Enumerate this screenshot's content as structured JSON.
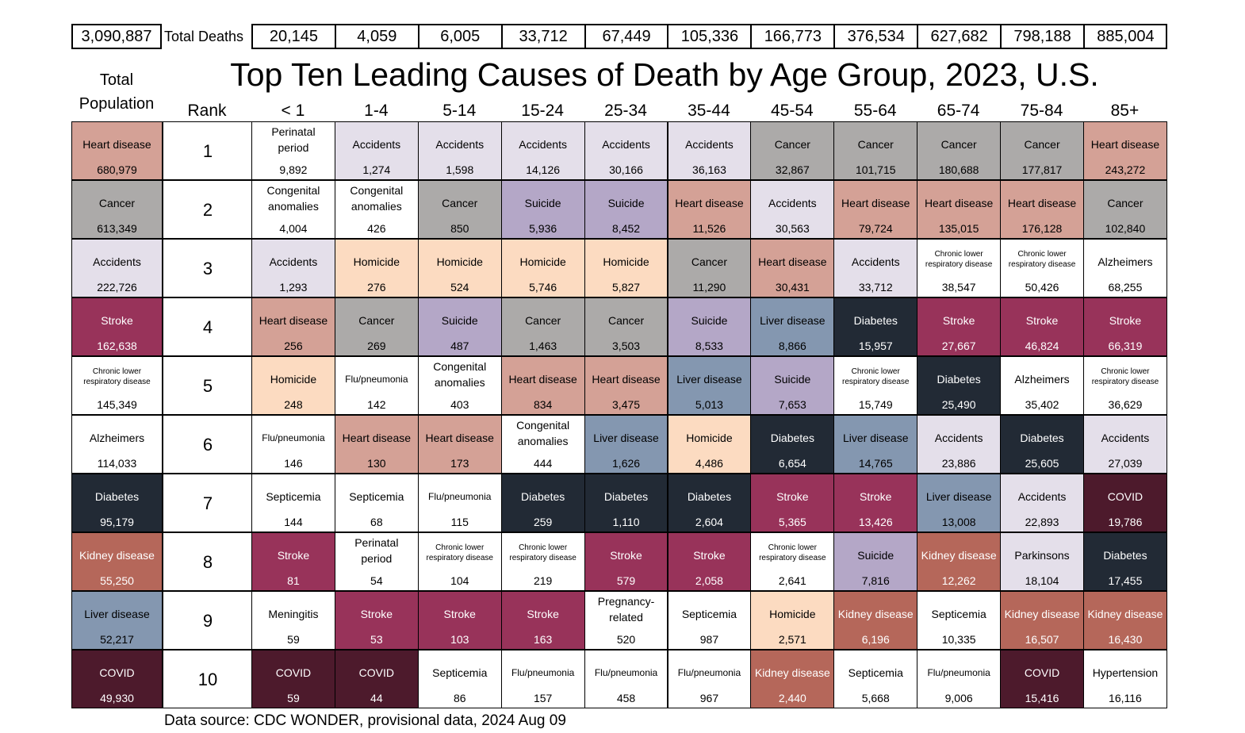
{
  "total_deaths_all": "3,090,887",
  "total_deaths_label": "Total Deaths",
  "title": "Top Ten Leading Causes of Death by Age Group, 2023, U.S.",
  "total_population_label": "Total Population",
  "rank_label": "Rank",
  "source": "Data source: CDC WONDER, provisional data, 2024 Aug 09",
  "colors": {
    "Heart disease": "#d4a196",
    "Cancer": "#acaaa9",
    "Accidents": "#e4dfea",
    "Stroke": "#98335a",
    "Chronic lower respiratory disease": "#ffffff",
    "Alzheimers": "#ffffff",
    "Diabetes": "#222a35",
    "Kidney disease": "#b5675a",
    "Liver disease": "#8497b0",
    "COVID": "#4d1a2c",
    "Perinatal period": "#ffffff",
    "Congenital anomalies": "#ffffff",
    "Homicide": "#fcdbc1",
    "Flu/pneumonia": "#ffffff",
    "Septicemia": "#ffffff",
    "Meningitis": "#ffffff",
    "Suicide": "#b4a7c7",
    "Pregnancy-related": "#ffffff",
    "Parkinsons": "#e4dfea",
    "Hypertension": "#ffffff"
  },
  "chart_data": {
    "type": "table",
    "title": "Top Ten Leading Causes of Death by Age Group, 2023, U.S.",
    "age_groups": [
      "< 1",
      "1-4",
      "5-14",
      "15-24",
      "25-34",
      "35-44",
      "45-54",
      "55-64",
      "65-74",
      "75-84",
      "85+"
    ],
    "total_deaths": [
      "20,145",
      "4,059",
      "6,005",
      "33,712",
      "67,449",
      "105,336",
      "166,773",
      "376,534",
      "627,682",
      "798,188",
      "885,004"
    ],
    "ranks": [
      "1",
      "2",
      "3",
      "4",
      "5",
      "6",
      "7",
      "8",
      "9",
      "10"
    ],
    "total_population": [
      {
        "cause": "Heart disease",
        "deaths": "680,979"
      },
      {
        "cause": "Cancer",
        "deaths": "613,349"
      },
      {
        "cause": "Accidents",
        "deaths": "222,726"
      },
      {
        "cause": "Stroke",
        "deaths": "162,638"
      },
      {
        "cause": "Chronic lower respiratory disease",
        "deaths": "145,349"
      },
      {
        "cause": "Alzheimers",
        "deaths": "114,033"
      },
      {
        "cause": "Diabetes",
        "deaths": "95,179"
      },
      {
        "cause": "Kidney disease",
        "deaths": "55,250"
      },
      {
        "cause": "Liver disease",
        "deaths": "52,217"
      },
      {
        "cause": "COVID",
        "deaths": "49,930"
      }
    ],
    "by_age": [
      [
        {
          "cause": "Perinatal period",
          "deaths": "9,892"
        },
        {
          "cause": "Congenital anomalies",
          "deaths": "4,004"
        },
        {
          "cause": "Accidents",
          "deaths": "1,293"
        },
        {
          "cause": "Heart disease",
          "deaths": "256"
        },
        {
          "cause": "Homicide",
          "deaths": "248"
        },
        {
          "cause": "Flu/pneumonia",
          "deaths": "146"
        },
        {
          "cause": "Septicemia",
          "deaths": "144"
        },
        {
          "cause": "Stroke",
          "deaths": "81"
        },
        {
          "cause": "Meningitis",
          "deaths": "59"
        },
        {
          "cause": "COVID",
          "deaths": "59"
        }
      ],
      [
        {
          "cause": "Accidents",
          "deaths": "1,274"
        },
        {
          "cause": "Congenital anomalies",
          "deaths": "426"
        },
        {
          "cause": "Homicide",
          "deaths": "276"
        },
        {
          "cause": "Cancer",
          "deaths": "269"
        },
        {
          "cause": "Flu/pneumonia",
          "deaths": "142"
        },
        {
          "cause": "Heart disease",
          "deaths": "130"
        },
        {
          "cause": "Septicemia",
          "deaths": "68"
        },
        {
          "cause": "Perinatal period",
          "deaths": "54"
        },
        {
          "cause": "Stroke",
          "deaths": "53"
        },
        {
          "cause": "COVID",
          "deaths": "44"
        }
      ],
      [
        {
          "cause": "Accidents",
          "deaths": "1,598"
        },
        {
          "cause": "Cancer",
          "deaths": "850"
        },
        {
          "cause": "Homicide",
          "deaths": "524"
        },
        {
          "cause": "Suicide",
          "deaths": "487"
        },
        {
          "cause": "Congenital anomalies",
          "deaths": "403"
        },
        {
          "cause": "Heart disease",
          "deaths": "173"
        },
        {
          "cause": "Flu/pneumonia",
          "deaths": "115"
        },
        {
          "cause": "Chronic lower respiratory disease",
          "deaths": "104"
        },
        {
          "cause": "Stroke",
          "deaths": "103"
        },
        {
          "cause": "Septicemia",
          "deaths": "86"
        }
      ],
      [
        {
          "cause": "Accidents",
          "deaths": "14,126"
        },
        {
          "cause": "Suicide",
          "deaths": "5,936"
        },
        {
          "cause": "Homicide",
          "deaths": "5,746"
        },
        {
          "cause": "Cancer",
          "deaths": "1,463"
        },
        {
          "cause": "Heart disease",
          "deaths": "834"
        },
        {
          "cause": "Congenital anomalies",
          "deaths": "444"
        },
        {
          "cause": "Diabetes",
          "deaths": "259"
        },
        {
          "cause": "Chronic lower respiratory disease",
          "deaths": "219"
        },
        {
          "cause": "Stroke",
          "deaths": "163"
        },
        {
          "cause": "Flu/pneumonia",
          "deaths": "157"
        }
      ],
      [
        {
          "cause": "Accidents",
          "deaths": "30,166"
        },
        {
          "cause": "Suicide",
          "deaths": "8,452"
        },
        {
          "cause": "Homicide",
          "deaths": "5,827"
        },
        {
          "cause": "Cancer",
          "deaths": "3,503"
        },
        {
          "cause": "Heart disease",
          "deaths": "3,475"
        },
        {
          "cause": "Liver disease",
          "deaths": "1,626"
        },
        {
          "cause": "Diabetes",
          "deaths": "1,110"
        },
        {
          "cause": "Stroke",
          "deaths": "579"
        },
        {
          "cause": "Pregnancy-related",
          "deaths": "520"
        },
        {
          "cause": "Flu/pneumonia",
          "deaths": "458"
        }
      ],
      [
        {
          "cause": "Accidents",
          "deaths": "36,163"
        },
        {
          "cause": "Heart disease",
          "deaths": "11,526"
        },
        {
          "cause": "Cancer",
          "deaths": "11,290"
        },
        {
          "cause": "Suicide",
          "deaths": "8,533"
        },
        {
          "cause": "Liver disease",
          "deaths": "5,013"
        },
        {
          "cause": "Homicide",
          "deaths": "4,486"
        },
        {
          "cause": "Diabetes",
          "deaths": "2,604"
        },
        {
          "cause": "Stroke",
          "deaths": "2,058"
        },
        {
          "cause": "Septicemia",
          "deaths": "987"
        },
        {
          "cause": "Flu/pneumonia",
          "deaths": "967"
        }
      ],
      [
        {
          "cause": "Cancer",
          "deaths": "32,867"
        },
        {
          "cause": "Accidents",
          "deaths": "30,563"
        },
        {
          "cause": "Heart disease",
          "deaths": "30,431"
        },
        {
          "cause": "Liver disease",
          "deaths": "8,866"
        },
        {
          "cause": "Suicide",
          "deaths": "7,653"
        },
        {
          "cause": "Diabetes",
          "deaths": "6,654"
        },
        {
          "cause": "Stroke",
          "deaths": "5,365"
        },
        {
          "cause": "Chronic lower respiratory disease",
          "deaths": "2,641"
        },
        {
          "cause": "Homicide",
          "deaths": "2,571"
        },
        {
          "cause": "Kidney disease",
          "deaths": "2,440"
        }
      ],
      [
        {
          "cause": "Cancer",
          "deaths": "101,715"
        },
        {
          "cause": "Heart disease",
          "deaths": "79,724"
        },
        {
          "cause": "Accidents",
          "deaths": "33,712"
        },
        {
          "cause": "Diabetes",
          "deaths": "15,957"
        },
        {
          "cause": "Chronic lower respiratory disease",
          "deaths": "15,749"
        },
        {
          "cause": "Liver disease",
          "deaths": "14,765"
        },
        {
          "cause": "Stroke",
          "deaths": "13,426"
        },
        {
          "cause": "Suicide",
          "deaths": "7,816"
        },
        {
          "cause": "Kidney disease",
          "deaths": "6,196"
        },
        {
          "cause": "Septicemia",
          "deaths": "5,668"
        }
      ],
      [
        {
          "cause": "Cancer",
          "deaths": "180,688"
        },
        {
          "cause": "Heart disease",
          "deaths": "135,015"
        },
        {
          "cause": "Chronic lower respiratory disease",
          "deaths": "38,547"
        },
        {
          "cause": "Stroke",
          "deaths": "27,667"
        },
        {
          "cause": "Diabetes",
          "deaths": "25,490"
        },
        {
          "cause": "Accidents",
          "deaths": "23,886"
        },
        {
          "cause": "Liver disease",
          "deaths": "13,008"
        },
        {
          "cause": "Kidney disease",
          "deaths": "12,262"
        },
        {
          "cause": "Septicemia",
          "deaths": "10,335"
        },
        {
          "cause": "Flu/pneumonia",
          "deaths": "9,006"
        }
      ],
      [
        {
          "cause": "Cancer",
          "deaths": "177,817"
        },
        {
          "cause": "Heart disease",
          "deaths": "176,128"
        },
        {
          "cause": "Chronic lower respiratory disease",
          "deaths": "50,426"
        },
        {
          "cause": "Stroke",
          "deaths": "46,824"
        },
        {
          "cause": "Alzheimers",
          "deaths": "35,402"
        },
        {
          "cause": "Diabetes",
          "deaths": "25,605"
        },
        {
          "cause": "Accidents",
          "deaths": "22,893"
        },
        {
          "cause": "Parkinsons",
          "deaths": "18,104"
        },
        {
          "cause": "Kidney disease",
          "deaths": "16,507"
        },
        {
          "cause": "COVID",
          "deaths": "15,416"
        }
      ],
      [
        {
          "cause": "Heart disease",
          "deaths": "243,272"
        },
        {
          "cause": "Cancer",
          "deaths": "102,840"
        },
        {
          "cause": "Alzheimers",
          "deaths": "68,255"
        },
        {
          "cause": "Stroke",
          "deaths": "66,319"
        },
        {
          "cause": "Chronic lower respiratory disease",
          "deaths": "36,629"
        },
        {
          "cause": "Accidents",
          "deaths": "27,039"
        },
        {
          "cause": "COVID",
          "deaths": "19,786"
        },
        {
          "cause": "Diabetes",
          "deaths": "17,455"
        },
        {
          "cause": "Kidney disease",
          "deaths": "16,430"
        },
        {
          "cause": "Hypertension",
          "deaths": "16,116"
        }
      ]
    ]
  }
}
